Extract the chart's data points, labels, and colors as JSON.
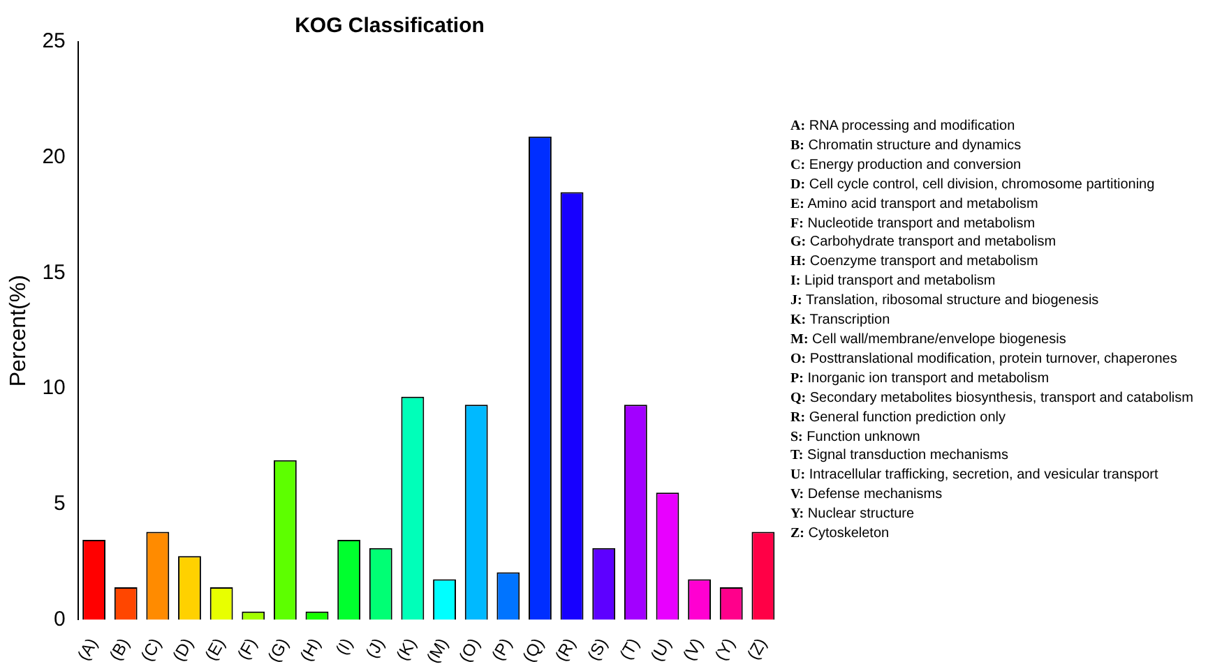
{
  "chart_data": {
    "type": "bar",
    "title": "KOG Classification",
    "ylabel": "Percent(%)",
    "categories": [
      "(A)",
      "(B)",
      "(C)",
      "(D)",
      "(E)",
      "(F)",
      "(G)",
      "(H)",
      "(I)",
      "(J)",
      "(K)",
      "(M)",
      "(O)",
      "(P)",
      "(Q)",
      "(R)",
      "(S)",
      "(T)",
      "(U)",
      "(V)",
      "(Y)",
      "(Z)"
    ],
    "values": [
      3.45,
      1.4,
      3.8,
      2.75,
      1.4,
      0.35,
      6.9,
      0.35,
      3.45,
      3.1,
      9.65,
      1.75,
      9.3,
      2.05,
      20.9,
      18.5,
      3.1,
      9.3,
      5.5,
      1.75,
      1.4,
      3.8
    ],
    "colors": [
      "#ff0000",
      "#ff4600",
      "#ff8b00",
      "#ffd100",
      "#e8ff00",
      "#a2ff00",
      "#5dff00",
      "#17ff00",
      "#00ff2e",
      "#00ff74",
      "#00ffb9",
      "#00ffff",
      "#00b9ff",
      "#0074ff",
      "#002eff",
      "#1700ff",
      "#5d00ff",
      "#a200ff",
      "#e800ff",
      "#ff00d1",
      "#ff008b",
      "#ff0046"
    ],
    "ylim": [
      0,
      25
    ],
    "yticks": [
      0,
      5,
      10,
      15,
      20,
      25
    ],
    "grid": false,
    "legend": false,
    "annotations": [
      "A: RNA processing and modification",
      "B: Chromatin structure and dynamics",
      "C: Energy production and conversion",
      "D: Cell cycle control, cell division, chromosome partitioning",
      "E: Amino acid transport and metabolism",
      "F: Nucleotide transport and metabolism",
      "G: Carbohydrate transport and metabolism",
      "H: Coenzyme transport and metabolism",
      "I: Lipid transport and metabolism",
      "J: Translation, ribosomal structure and biogenesis",
      "K: Transcription",
      "M: Cell wall/membrane/envelope biogenesis",
      "O: Posttranslational modification, protein turnover, chaperones",
      "P: Inorganic ion transport and metabolism",
      "Q: Secondary metabolites biosynthesis, transport and catabolism",
      "R: General function prediction only",
      "S: Function unknown",
      "T: Signal transduction mechanisms",
      "U: Intracellular trafficking, secretion, and vesicular transport",
      "V: Defense mechanisms",
      "Y: Nuclear structure",
      "Z: Cytoskeleton"
    ]
  }
}
